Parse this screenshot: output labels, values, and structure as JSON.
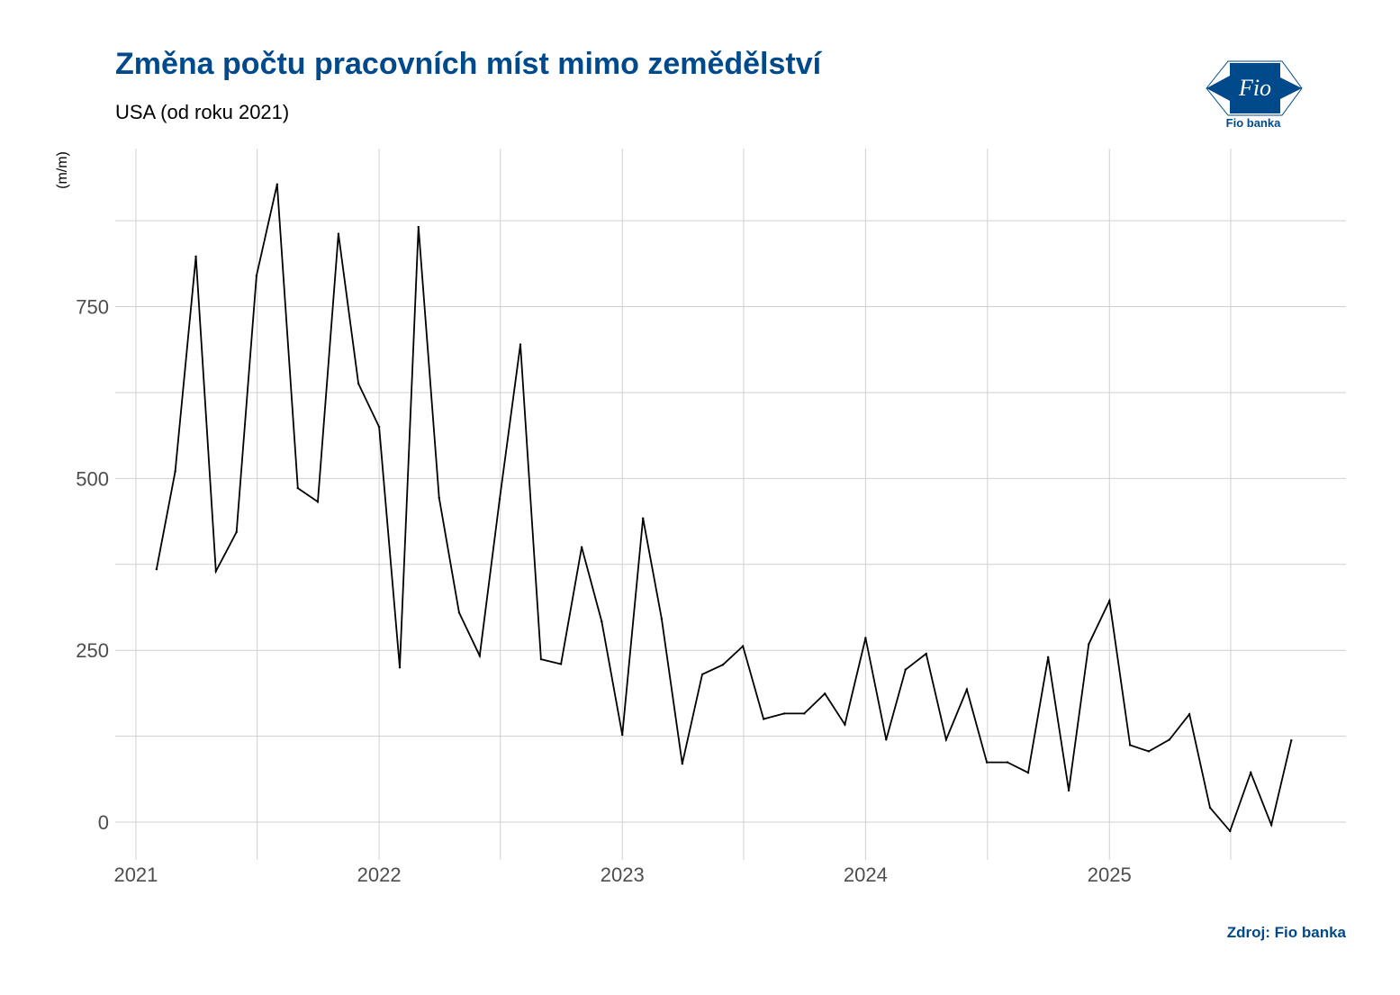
{
  "header": {
    "title": "Změna počtu pracovních míst mimo zemědělství",
    "subtitle": "USA (od roku 2021)"
  },
  "logo": {
    "mark": "Fio",
    "name": "Fio banka",
    "color": "#004a8c"
  },
  "footer": {
    "source": "Zdroj: Fio banka"
  },
  "chart_data": {
    "type": "line",
    "title": "Změna počtu pracovních míst mimo zemědělství",
    "subtitle": "USA (od roku 2021)",
    "xlabel": "",
    "ylabel": "(m/m)",
    "x_tick_labels": [
      "2021",
      "2022",
      "2023",
      "2024",
      "2025"
    ],
    "y_tick_labels": [
      "0",
      "250",
      "500",
      "750"
    ],
    "y_ticks": [
      0,
      250,
      500,
      750
    ],
    "ylim": [
      -55,
      980
    ],
    "xlim": [
      "2020-12-01",
      "2025-12-22"
    ],
    "grid": true,
    "line_color": "#000000",
    "series": [
      {
        "x": [
          "2021-02-01",
          "2021-03-01",
          "2021-04-01",
          "2021-05-01",
          "2021-06-01",
          "2021-07-01",
          "2021-08-01",
          "2021-09-01",
          "2021-10-01",
          "2021-11-01",
          "2021-12-01",
          "2022-01-01",
          "2022-02-01",
          "2022-03-01",
          "2022-04-01",
          "2022-05-01",
          "2022-06-01",
          "2022-07-01",
          "2022-08-01",
          "2022-09-01",
          "2022-10-01",
          "2022-11-01",
          "2022-12-01",
          "2023-01-01",
          "2023-02-01",
          "2023-03-01",
          "2023-04-01",
          "2023-05-01",
          "2023-06-01",
          "2023-07-01",
          "2023-08-01",
          "2023-09-01",
          "2023-10-01",
          "2023-11-01",
          "2023-12-01",
          "2024-01-01",
          "2024-02-01",
          "2024-03-01",
          "2024-04-01",
          "2024-05-01",
          "2024-06-01",
          "2024-07-01",
          "2024-08-01",
          "2024-09-01",
          "2024-10-01",
          "2024-11-01",
          "2024-12-01",
          "2025-01-01",
          "2025-02-01",
          "2025-03-01",
          "2025-04-01",
          "2025-05-01",
          "2025-06-01",
          "2025-07-01",
          "2025-08-01",
          "2025-09-01",
          "2025-10-01"
        ],
        "values": [
          368,
          510,
          823,
          365,
          422,
          795,
          928,
          486,
          466,
          856,
          638,
          575,
          225,
          866,
          472,
          305,
          242,
          470,
          695,
          237,
          230,
          400,
          292,
          127,
          442,
          296,
          85,
          215,
          229,
          256,
          150,
          158,
          158,
          187,
          142,
          268,
          120,
          222,
          245,
          120,
          193,
          87,
          87,
          72,
          240,
          46,
          259,
          322,
          112,
          103,
          120,
          157,
          21,
          -13,
          72,
          -4,
          119
        ]
      }
    ]
  }
}
